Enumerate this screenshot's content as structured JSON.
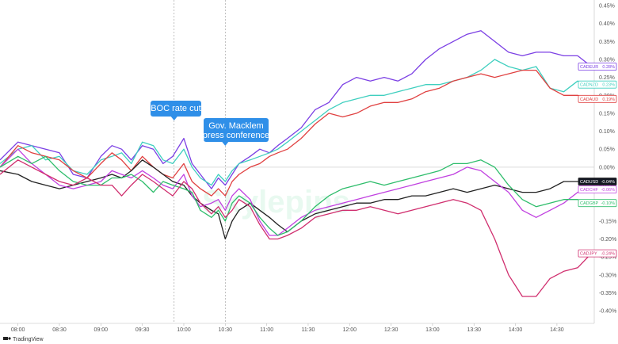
{
  "chart_data": {
    "type": "line",
    "grid": false,
    "ylim": [
      -0.45,
      0.45
    ],
    "y_ticks": [
      "0.45%",
      "0.40%",
      "0.35%",
      "0.30%",
      "0.25%",
      "0.20%",
      "0.15%",
      "0.10%",
      "0.05%",
      "0.00%",
      "-0.05%",
      "-0.10%",
      "-0.15%",
      "-0.20%",
      "-0.25%",
      "-0.30%",
      "-0.35%",
      "-0.40%"
    ],
    "y_tick_values": [
      0.45,
      0.4,
      0.35,
      0.3,
      0.25,
      0.2,
      0.15,
      0.1,
      0.05,
      0.0,
      -0.05,
      -0.1,
      -0.15,
      -0.2,
      -0.25,
      -0.3,
      -0.35,
      -0.4
    ],
    "x_ticks": [
      "08:00",
      "08:30",
      "09:00",
      "09:30",
      "10:00",
      "10:30",
      "11:00",
      "11:30",
      "12:00",
      "12:30",
      "13:00",
      "13:30",
      "14:00",
      "14:30"
    ],
    "x_tick_minutes": [
      480,
      510,
      540,
      570,
      600,
      630,
      660,
      690,
      720,
      750,
      780,
      810,
      840,
      870
    ],
    "xlim_minutes": [
      467,
      897
    ],
    "series": [
      {
        "label": "CADEUR",
        "end_label": "0.28%",
        "color": "#7b3fe4",
        "x": [
          467,
          480,
          490,
          500,
          510,
          520,
          530,
          540,
          548,
          555,
          562,
          570,
          578,
          585,
          592,
          600,
          606,
          612,
          620,
          625,
          630,
          635,
          640,
          648,
          655,
          662,
          668,
          675,
          685,
          695,
          705,
          715,
          725,
          735,
          745,
          755,
          765,
          775,
          785,
          795,
          805,
          815,
          825,
          835,
          845,
          855,
          865,
          875,
          885,
          895
        ],
        "y": [
          0.02,
          0.07,
          0.06,
          0.05,
          0.04,
          -0.02,
          -0.03,
          0.03,
          0.06,
          0.05,
          0.02,
          0.06,
          0.05,
          0.01,
          0.03,
          0.08,
          0.01,
          -0.02,
          -0.06,
          -0.03,
          -0.05,
          -0.02,
          0.01,
          0.03,
          0.05,
          0.04,
          0.06,
          0.08,
          0.11,
          0.16,
          0.18,
          0.23,
          0.25,
          0.24,
          0.25,
          0.24,
          0.26,
          0.3,
          0.33,
          0.35,
          0.37,
          0.38,
          0.35,
          0.32,
          0.31,
          0.32,
          0.32,
          0.31,
          0.31,
          0.28
        ]
      },
      {
        "label": "CADNZD",
        "end_label": "0.23%",
        "color": "#3fcfbf",
        "x": [
          467,
          480,
          490,
          500,
          510,
          520,
          530,
          540,
          548,
          555,
          562,
          570,
          578,
          585,
          592,
          600,
          606,
          612,
          620,
          625,
          630,
          635,
          640,
          648,
          655,
          662,
          668,
          675,
          685,
          695,
          705,
          715,
          725,
          735,
          745,
          755,
          765,
          775,
          785,
          795,
          805,
          815,
          825,
          835,
          845,
          855,
          865,
          875,
          885,
          895
        ],
        "y": [
          0.01,
          0.05,
          0.06,
          0.02,
          0.03,
          -0.01,
          -0.02,
          0.02,
          0.03,
          0.04,
          0.01,
          0.07,
          0.06,
          0.02,
          0.01,
          0.05,
          0.0,
          -0.03,
          -0.05,
          -0.02,
          -0.04,
          -0.01,
          0.01,
          0.02,
          0.03,
          0.04,
          0.05,
          0.07,
          0.1,
          0.13,
          0.16,
          0.18,
          0.19,
          0.2,
          0.2,
          0.21,
          0.22,
          0.23,
          0.23,
          0.24,
          0.25,
          0.27,
          0.3,
          0.28,
          0.27,
          0.28,
          0.22,
          0.21,
          0.24,
          0.23
        ]
      },
      {
        "label": "CADAUD",
        "end_label": "0.19%",
        "color": "#e04040",
        "x": [
          467,
          480,
          490,
          500,
          510,
          520,
          530,
          540,
          548,
          555,
          562,
          570,
          578,
          585,
          592,
          600,
          606,
          612,
          620,
          625,
          630,
          635,
          640,
          648,
          655,
          662,
          668,
          675,
          685,
          695,
          705,
          715,
          725,
          735,
          745,
          755,
          765,
          775,
          785,
          795,
          805,
          815,
          825,
          835,
          845,
          855,
          865,
          875,
          885,
          895
        ],
        "y": [
          0.0,
          0.06,
          0.04,
          0.03,
          0.02,
          -0.01,
          -0.03,
          0.01,
          0.04,
          0.02,
          -0.01,
          0.03,
          0.0,
          -0.02,
          -0.03,
          0.01,
          -0.04,
          -0.06,
          -0.08,
          -0.06,
          -0.08,
          -0.04,
          -0.02,
          0.0,
          0.01,
          0.03,
          0.04,
          0.05,
          0.08,
          0.12,
          0.15,
          0.14,
          0.15,
          0.17,
          0.18,
          0.18,
          0.19,
          0.21,
          0.22,
          0.24,
          0.25,
          0.26,
          0.25,
          0.26,
          0.27,
          0.27,
          0.22,
          0.2,
          0.2,
          0.19
        ]
      },
      {
        "label": "CADUSD",
        "end_label": "-0.04%",
        "color": "#222222",
        "x": [
          467,
          480,
          490,
          500,
          510,
          520,
          530,
          540,
          548,
          555,
          562,
          570,
          578,
          585,
          592,
          600,
          606,
          612,
          620,
          625,
          630,
          635,
          640,
          648,
          655,
          662,
          668,
          675,
          685,
          695,
          705,
          715,
          725,
          735,
          745,
          755,
          765,
          775,
          785,
          795,
          805,
          815,
          825,
          835,
          845,
          855,
          865,
          875,
          885,
          895
        ],
        "y": [
          -0.01,
          -0.02,
          -0.04,
          -0.05,
          -0.06,
          -0.05,
          -0.04,
          -0.03,
          -0.02,
          -0.03,
          -0.01,
          0.02,
          0.0,
          -0.02,
          -0.04,
          -0.05,
          -0.08,
          -0.1,
          -0.12,
          -0.13,
          -0.2,
          -0.15,
          -0.12,
          -0.1,
          -0.12,
          -0.14,
          -0.16,
          -0.18,
          -0.15,
          -0.13,
          -0.12,
          -0.11,
          -0.1,
          -0.1,
          -0.09,
          -0.09,
          -0.08,
          -0.08,
          -0.07,
          -0.06,
          -0.07,
          -0.06,
          -0.05,
          -0.06,
          -0.07,
          -0.07,
          -0.06,
          -0.04,
          -0.04,
          -0.04
        ]
      },
      {
        "label": "CADCHF",
        "end_label": "-0.06%",
        "color": "#c040e0",
        "x": [
          467,
          480,
          490,
          500,
          510,
          520,
          530,
          540,
          548,
          555,
          562,
          570,
          578,
          585,
          592,
          600,
          606,
          612,
          620,
          625,
          630,
          635,
          640,
          648,
          655,
          662,
          668,
          675,
          685,
          695,
          705,
          715,
          725,
          735,
          745,
          755,
          765,
          775,
          785,
          795,
          805,
          815,
          825,
          835,
          845,
          855,
          865,
          875,
          885,
          895
        ],
        "y": [
          0.0,
          0.05,
          0.01,
          -0.02,
          -0.05,
          -0.06,
          -0.05,
          -0.04,
          -0.01,
          -0.02,
          -0.03,
          -0.01,
          -0.03,
          -0.05,
          -0.06,
          -0.02,
          -0.08,
          -0.11,
          -0.1,
          -0.09,
          -0.12,
          -0.08,
          -0.06,
          -0.09,
          -0.15,
          -0.19,
          -0.19,
          -0.17,
          -0.14,
          -0.12,
          -0.11,
          -0.1,
          -0.09,
          -0.08,
          -0.07,
          -0.06,
          -0.05,
          -0.04,
          -0.03,
          -0.02,
          0.0,
          -0.01,
          -0.04,
          -0.07,
          -0.12,
          -0.14,
          -0.12,
          -0.1,
          -0.07,
          -0.06
        ]
      },
      {
        "label": "CADGBP",
        "end_label": "-0.10%",
        "color": "#2ebd6b",
        "x": [
          467,
          480,
          490,
          500,
          510,
          520,
          530,
          540,
          548,
          555,
          562,
          570,
          578,
          585,
          592,
          600,
          606,
          612,
          620,
          625,
          630,
          635,
          640,
          648,
          655,
          662,
          668,
          675,
          685,
          695,
          705,
          715,
          725,
          735,
          745,
          755,
          765,
          775,
          785,
          795,
          805,
          815,
          825,
          835,
          845,
          855,
          865,
          875,
          885,
          895
        ],
        "y": [
          0.0,
          0.03,
          0.01,
          0.03,
          -0.01,
          -0.04,
          -0.05,
          -0.05,
          -0.03,
          -0.03,
          -0.02,
          -0.04,
          -0.07,
          -0.04,
          -0.05,
          -0.06,
          -0.07,
          -0.12,
          -0.14,
          -0.12,
          -0.15,
          -0.1,
          -0.08,
          -0.1,
          -0.14,
          -0.17,
          -0.19,
          -0.18,
          -0.15,
          -0.11,
          -0.08,
          -0.06,
          -0.05,
          -0.04,
          -0.05,
          -0.04,
          -0.03,
          -0.02,
          -0.01,
          0.01,
          0.01,
          0.02,
          0.0,
          -0.05,
          -0.09,
          -0.11,
          -0.1,
          -0.09,
          -0.09,
          -0.1
        ]
      },
      {
        "label": "CADJPY",
        "end_label": "-0.24%",
        "color": "#d02e6e",
        "x": [
          467,
          480,
          490,
          500,
          510,
          520,
          530,
          540,
          548,
          555,
          562,
          570,
          578,
          585,
          592,
          600,
          606,
          612,
          620,
          625,
          630,
          635,
          640,
          648,
          655,
          662,
          668,
          675,
          685,
          695,
          705,
          715,
          725,
          735,
          745,
          755,
          765,
          775,
          785,
          795,
          805,
          815,
          825,
          835,
          845,
          855,
          865,
          875,
          885,
          895
        ],
        "y": [
          -0.02,
          0.02,
          0.0,
          -0.02,
          -0.04,
          -0.05,
          -0.03,
          -0.05,
          -0.05,
          -0.08,
          -0.05,
          -0.02,
          -0.04,
          -0.06,
          -0.08,
          -0.04,
          -0.06,
          -0.1,
          -0.13,
          -0.11,
          -0.14,
          -0.12,
          -0.09,
          -0.11,
          -0.16,
          -0.2,
          -0.2,
          -0.19,
          -0.17,
          -0.14,
          -0.13,
          -0.12,
          -0.12,
          -0.11,
          -0.12,
          -0.13,
          -0.12,
          -0.11,
          -0.1,
          -0.09,
          -0.1,
          -0.12,
          -0.2,
          -0.3,
          -0.36,
          -0.36,
          -0.31,
          -0.29,
          -0.28,
          -0.24
        ]
      }
    ],
    "annotations": [
      {
        "text": "BOC rate cut",
        "lines": [
          "BOC rate cut"
        ],
        "x_minute": 593
      },
      {
        "text": "Gov. Macklem press conference",
        "lines": [
          "Gov. Macklem",
          "press conference"
        ],
        "x_minute": 630
      }
    ]
  },
  "header": {
    "cadusd_label": "CADUSD",
    "cadusd_value": "-0.04%"
  },
  "watermark": "Skylepips",
  "footer": {
    "brand": "TradingView"
  },
  "colors": {
    "callout_bg": "#2f8fe8",
    "axis_text": "#555555"
  }
}
